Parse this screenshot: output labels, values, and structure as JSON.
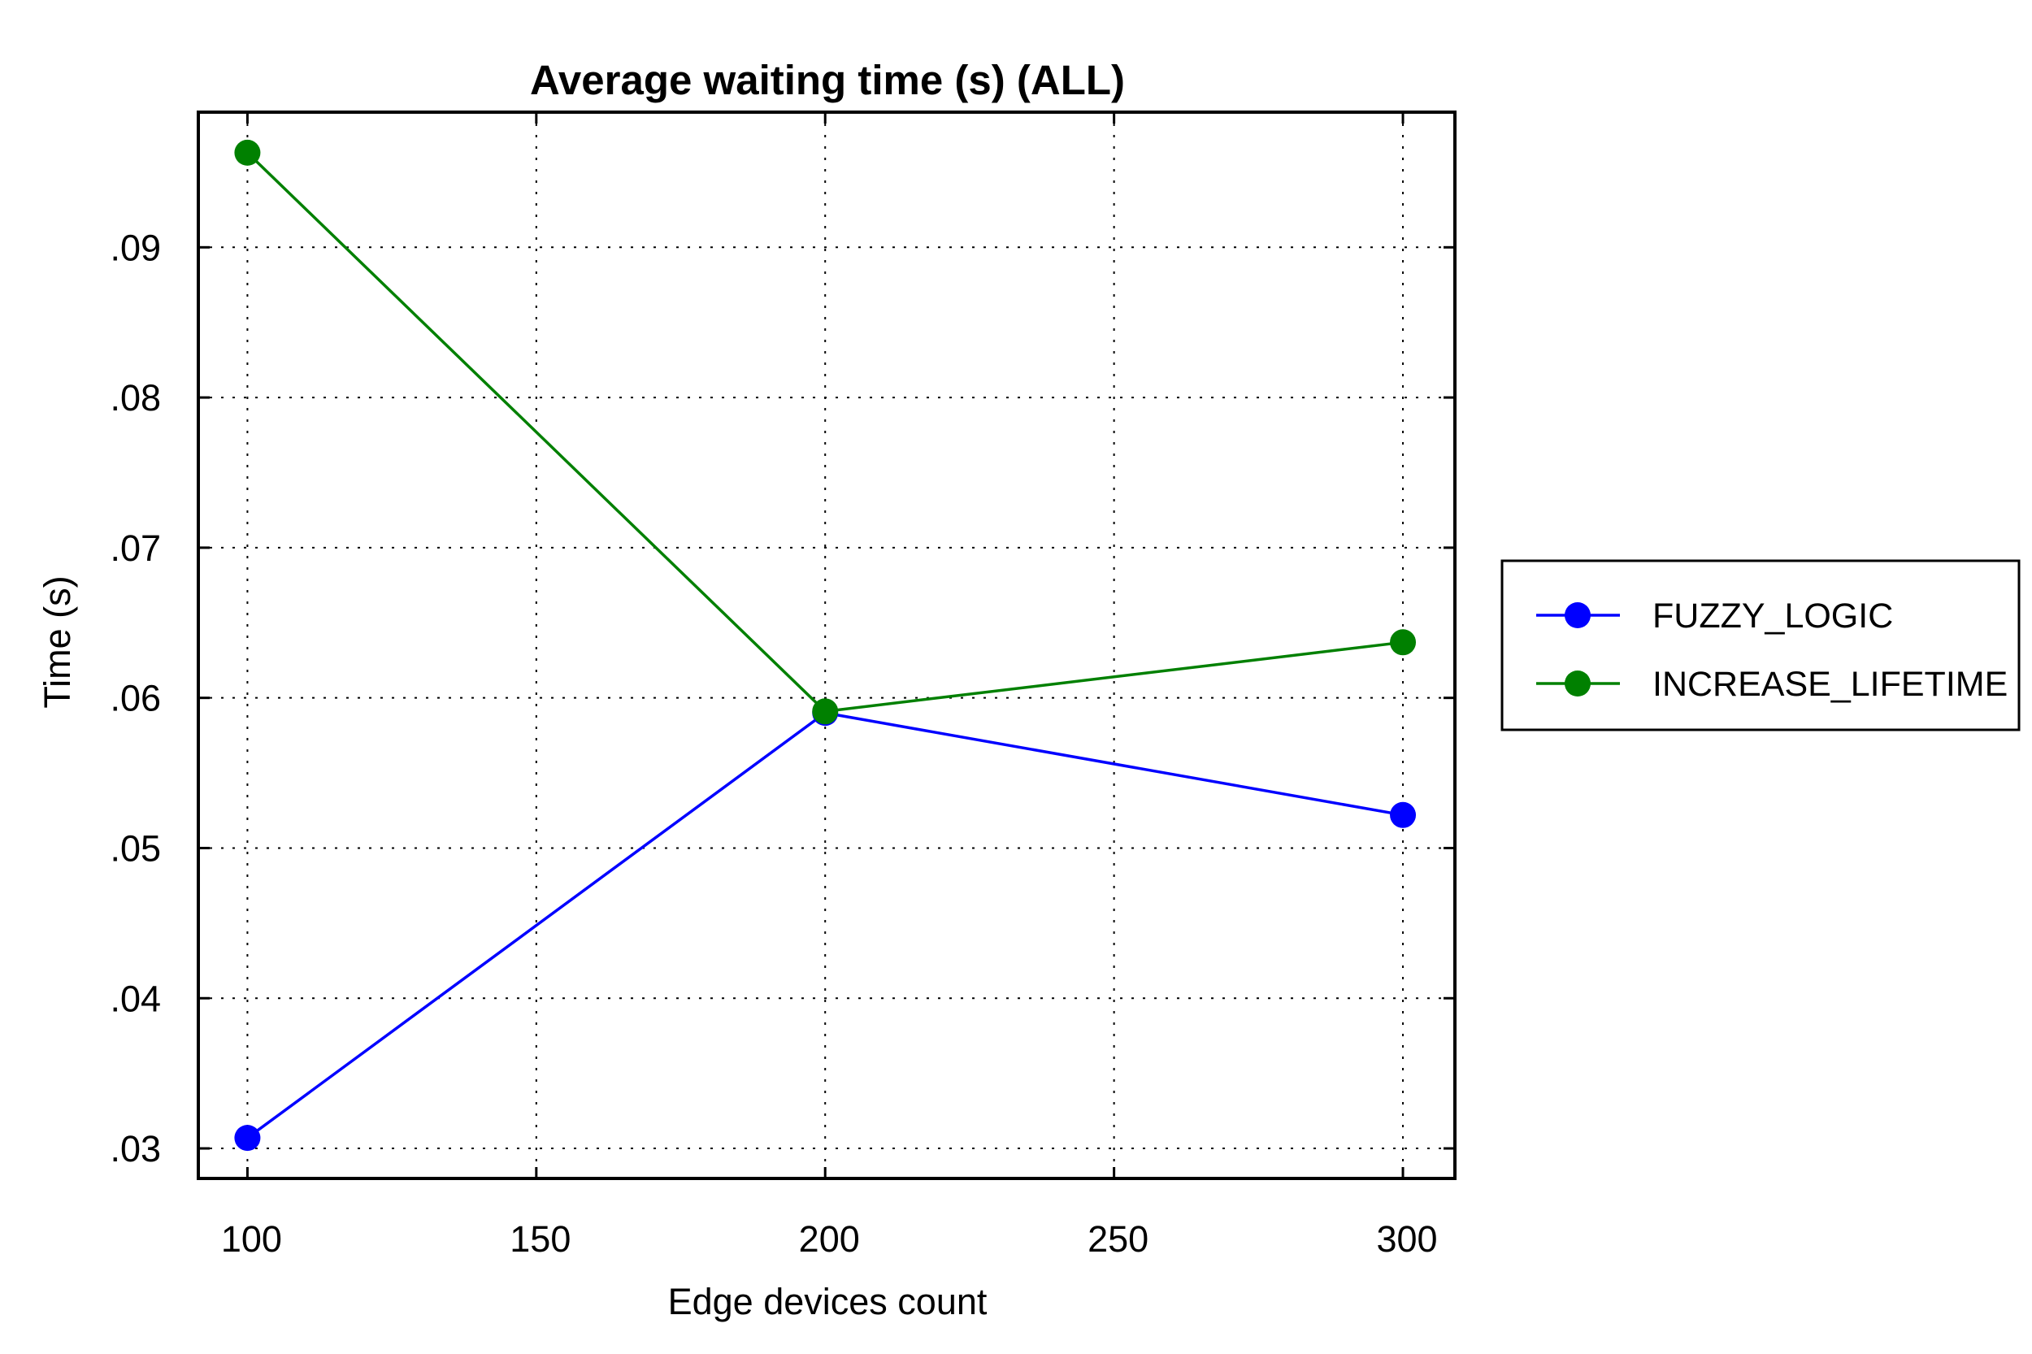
{
  "chart_data": {
    "type": "line",
    "title": "Average waiting time (s) (ALL)",
    "xlabel": "Edge devices count",
    "ylabel": "Time (s)",
    "x": [
      100,
      200,
      300
    ],
    "xlim": [
      91.5,
      309
    ],
    "ylim": [
      0.028,
      0.099
    ],
    "xticks": [
      100,
      150,
      200,
      250,
      300
    ],
    "xtick_labels": [
      "100",
      "150",
      "200",
      "250",
      "300"
    ],
    "yticks": [
      0.03,
      0.04,
      0.05,
      0.06,
      0.07,
      0.08,
      0.09
    ],
    "ytick_labels": [
      ".03",
      ".04",
      ".05",
      ".06",
      ".07",
      ".08",
      ".09"
    ],
    "grid": true,
    "legend_position": "outside-right",
    "series": [
      {
        "name": "FUZZY_LOGIC",
        "color": "#0000ff",
        "marker": "circle",
        "values": [
          0.0307,
          0.059,
          0.0522
        ]
      },
      {
        "name": "INCREASE_LIFETIME",
        "color": "#008000",
        "marker": "circle",
        "values": [
          0.0963,
          0.0591,
          0.0637
        ]
      }
    ]
  }
}
